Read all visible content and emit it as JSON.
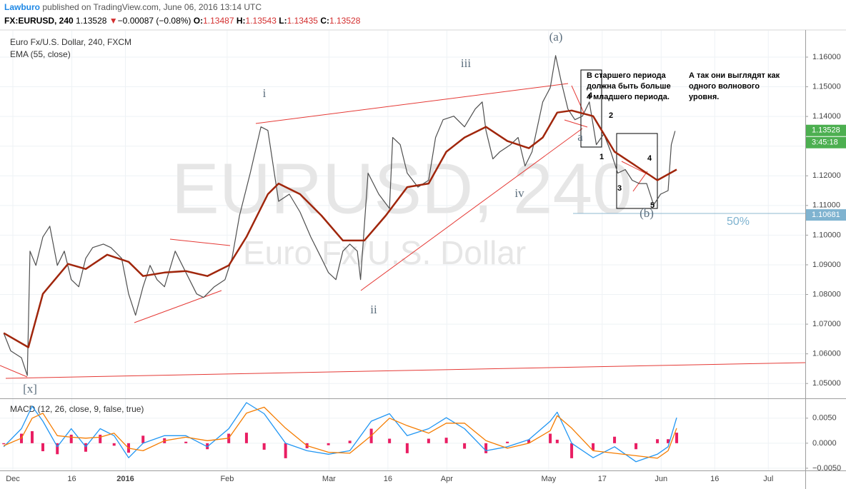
{
  "header": {
    "publisher": "Lawburo",
    "published": "published on TradingView.com, June 06, 2016 13:14 UTC",
    "symbol": "FX:EURUSD, 240",
    "last": "1.13528",
    "arrow": "▼",
    "change": "−0.00087 (−0.08%)",
    "ohlc": [
      {
        "label": "O:",
        "value": "1.13487"
      },
      {
        "label": "H:",
        "value": "1.13543"
      },
      {
        "label": "L:",
        "value": "1.13435"
      },
      {
        "label": "C:",
        "value": "1.13528"
      }
    ]
  },
  "chart_data": [
    {
      "type": "line",
      "title": "Euro Fx/U.S. Dollar, 240, FXCM",
      "watermark": "EURUSD, 240",
      "watermark_sub": "Euro Fx/U.S. Dollar",
      "grid": true,
      "xlim": [
        -2.4,
        147.9
      ],
      "ylim": [
        1.045,
        1.1689
      ],
      "xticks": [
        {
          "value": 0,
          "label": "Dec"
        },
        {
          "value": 11,
          "label": "16"
        },
        {
          "value": 21,
          "label": "2016"
        },
        {
          "value": 40,
          "label": "Feb"
        },
        {
          "value": 59,
          "label": "Mar"
        },
        {
          "value": 70,
          "label": "16"
        },
        {
          "value": 81,
          "label": "Apr"
        },
        {
          "value": 100,
          "label": "May"
        },
        {
          "value": 110,
          "label": "17"
        },
        {
          "value": 121,
          "label": "Jun"
        },
        {
          "value": 131,
          "label": "16"
        },
        {
          "value": 141,
          "label": "Jul"
        }
      ],
      "yticks": [
        {
          "value": 1.05,
          "label": "1.05000"
        },
        {
          "value": 1.06,
          "label": "1.06000"
        },
        {
          "value": 1.07,
          "label": "1.07000"
        },
        {
          "value": 1.08,
          "label": "1.08000"
        },
        {
          "value": 1.09,
          "label": "1.09000"
        },
        {
          "value": 1.1,
          "label": "1.10000"
        },
        {
          "value": 1.11,
          "label": "1.11000"
        },
        {
          "value": 1.12,
          "label": "1.12000"
        },
        {
          "value": 1.13,
          "label": "1.13000"
        },
        {
          "value": 1.14,
          "label": "1.14000"
        },
        {
          "value": 1.15,
          "label": "1.15000"
        },
        {
          "value": 1.16,
          "label": "1.16000"
        }
      ],
      "series": [
        {
          "name": "Euro Fx/U.S. Dollar, 240, FXCM",
          "color": "#4f4f4f",
          "width": 1.2,
          "x": [
            -1.7,
            -0.4,
            1.6,
            2.7,
            3.2,
            4.3,
            5.6,
            6.9,
            8.3,
            9.6,
            10.9,
            12.3,
            13.6,
            14.9,
            16.9,
            18.3,
            20.3,
            21.6,
            22.9,
            24.3,
            25.6,
            26.9,
            28.3,
            30.3,
            32.3,
            34.3,
            35.6,
            37.6,
            39.6,
            40.9,
            42.3,
            44.3,
            46.3,
            47.6,
            49.6,
            51.6,
            53.6,
            55.6,
            57.6,
            58.9,
            60.3,
            61.6,
            62.9,
            64.3,
            64.9,
            66.3,
            68.3,
            70.3,
            70.9,
            72.3,
            73.6,
            75.6,
            77.6,
            78.9,
            80.3,
            82.3,
            84.3,
            86.3,
            87.6,
            88.3,
            89.6,
            90.9,
            92.9,
            94.3,
            95.6,
            96.9,
            98.9,
            100.3,
            101.3,
            102.3,
            103.6,
            104.9,
            106.3,
            107.6,
            108.9,
            110.3,
            111.6,
            112.9,
            114.3,
            115.6,
            116.9,
            118.3,
            119.6,
            120.9,
            122.3,
            122.9,
            123.6
          ],
          "values": [
            1.067,
            1.061,
            1.0587,
            1.0527,
            1.0946,
            1.0898,
            1.0994,
            1.103,
            1.0898,
            1.0946,
            1.085,
            1.0826,
            1.0922,
            1.0958,
            1.097,
            1.0958,
            1.0922,
            1.0802,
            1.073,
            1.0826,
            1.0898,
            1.085,
            1.0826,
            1.0946,
            1.0874,
            1.0802,
            1.079,
            1.0826,
            1.085,
            1.0922,
            1.1066,
            1.1209,
            1.1365,
            1.1353,
            1.1114,
            1.1138,
            1.1078,
            1.0994,
            1.0922,
            1.0874,
            1.085,
            1.0946,
            1.097,
            1.0946,
            1.085,
            1.1209,
            1.1138,
            1.109,
            1.1329,
            1.1305,
            1.1209,
            1.1162,
            1.1185,
            1.1329,
            1.1389,
            1.1401,
            1.1365,
            1.1425,
            1.1449,
            1.1353,
            1.1257,
            1.1281,
            1.1305,
            1.1329,
            1.1233,
            1.1281,
            1.1449,
            1.1497,
            1.1605,
            1.1521,
            1.1425,
            1.1389,
            1.1401,
            1.1449,
            1.1305,
            1.1341,
            1.1281,
            1.1209,
            1.1221,
            1.1185,
            1.1174,
            1.1174,
            1.1102,
            1.1138,
            1.115,
            1.1305,
            1.1351
          ]
        },
        {
          "name": "EMA (55, close)",
          "color": "#a0260c",
          "width": 2.5,
          "x": [
            -1.7,
            2.9,
            5.6,
            10.3,
            13.6,
            17.6,
            21.6,
            24.3,
            28.3,
            32.3,
            36.3,
            40.3,
            43.6,
            47.6,
            49.6,
            53.6,
            57.6,
            61.6,
            65.6,
            69.6,
            73.6,
            77.6,
            80.9,
            84.3,
            88.3,
            92.3,
            96.3,
            98.9,
            101.6,
            104.3,
            108.3,
            112.3,
            116.3,
            120.3,
            123.9
          ],
          "values": [
            1.067,
            1.0622,
            1.0802,
            1.0903,
            1.0886,
            1.0934,
            1.091,
            1.0862,
            1.0874,
            1.0879,
            1.0862,
            1.0898,
            1.0994,
            1.1138,
            1.1174,
            1.1138,
            1.1066,
            1.0982,
            1.0982,
            1.1066,
            1.1162,
            1.1174,
            1.1281,
            1.1329,
            1.1365,
            1.1317,
            1.1293,
            1.1329,
            1.1413,
            1.142,
            1.1401,
            1.1281,
            1.1233,
            1.1185,
            1.1221
          ]
        }
      ],
      "price_labels": [
        {
          "value": 1.13528,
          "label": "1.13528",
          "color": "#4caf50"
        },
        {
          "value": 1.10681,
          "label": "1.10681",
          "color": "#7fb3d0"
        }
      ],
      "countdown": "3:45:18",
      "annotations": {
        "a_big": "(a)",
        "iii": "iii",
        "i": "i",
        "ii": "ii",
        "iv": "iv",
        "a": "a",
        "x": "[x]",
        "b": "(b)",
        "n1": "1",
        "n2": "2",
        "n3": "3",
        "n4": "4",
        "n5": "5",
        "n4s": "4",
        "pct": "50%",
        "note1": [
          "В старшего периода",
          "должна быть больше",
          "4 младшего периода."
        ],
        "note2": [
          "А так они выглядят как",
          "одного волнового",
          "уровня."
        ]
      }
    },
    {
      "type": "line",
      "title": "MACD (12, 26, close, 9, false, true)",
      "xlim": [
        -2.4,
        147.9
      ],
      "ylim": [
        -0.00544,
        0.00882
      ],
      "yticks": [
        {
          "value": 0.005,
          "label": "0.0050"
        },
        {
          "value": 0,
          "label": "0.0000"
        },
        {
          "value": -0.005,
          "label": "−0.0050"
        }
      ],
      "series": [
        {
          "style": "histogram",
          "color": "#e91e63",
          "x": [
            -1.7,
            1.6,
            3.6,
            5.6,
            8.3,
            10.9,
            13.6,
            16.3,
            18.9,
            21.6,
            24.3,
            28.3,
            32.3,
            36.3,
            40.3,
            43.6,
            46.9,
            50.9,
            54.9,
            58.9,
            62.9,
            66.9,
            70.3,
            73.6,
            77.6,
            80.9,
            84.3,
            88.3,
            92.3,
            96.3,
            100.3,
            101.6,
            104.3,
            108.3,
            112.3,
            116.3,
            120.3,
            122.3,
            123.9
          ],
          "values": [
            -0.0002,
            0.0019,
            0.0024,
            -0.0016,
            -0.0022,
            0.0017,
            -0.0017,
            0.0017,
            -0.0005,
            -0.0019,
            0.0015,
            0.001,
            0.0003,
            -0.0012,
            0.0019,
            0.0021,
            -0.0013,
            -0.003,
            -0.001,
            -0.0004,
            0.0005,
            0.0029,
            0.0009,
            -0.002,
            0.0009,
            0.0011,
            -0.0011,
            -0.002,
            0.0003,
            0.0007,
            0.0019,
            0.0007,
            -0.003,
            -0.0014,
            0.0013,
            -0.0012,
            0.0008,
            0.0008,
            0.0021
          ]
        },
        {
          "style": "line",
          "color": "#2196f3",
          "x": [
            -1.7,
            1.6,
            3.6,
            5.6,
            8.3,
            10.9,
            13.6,
            16.3,
            18.9,
            21.6,
            24.3,
            28.3,
            32.3,
            36.3,
            40.3,
            43.6,
            46.9,
            50.9,
            54.9,
            58.9,
            62.9,
            66.9,
            70.3,
            73.6,
            77.6,
            80.9,
            84.3,
            88.3,
            92.3,
            96.3,
            100.3,
            101.6,
            104.3,
            108.3,
            112.3,
            116.3,
            120.3,
            122.3,
            123.9
          ],
          "values": [
            -0.0007,
            0.0029,
            0.0074,
            0.0044,
            -0.0007,
            0.0029,
            -0.0007,
            0.0029,
            0.0015,
            -0.0029,
            0,
            0.0015,
            0.0015,
            -0.0007,
            0.0029,
            0.0081,
            0.0059,
            0,
            -0.0015,
            -0.0022,
            -0.0015,
            0.0044,
            0.0059,
            0.0015,
            0.0029,
            0.0051,
            0.0029,
            -0.0015,
            -0.0007,
            0.0007,
            0.0044,
            0.0062,
            0,
            -0.0029,
            -0.0007,
            -0.0037,
            -0.0022,
            -0.0007,
            0.0051
          ]
        },
        {
          "style": "line",
          "color": "#f57c00",
          "x": [
            -1.7,
            1.6,
            3.6,
            5.6,
            8.3,
            10.9,
            13.6,
            16.3,
            18.9,
            21.6,
            24.3,
            28.3,
            32.3,
            36.3,
            40.3,
            43.6,
            46.9,
            50.9,
            54.9,
            58.9,
            62.9,
            66.9,
            70.3,
            73.6,
            77.6,
            80.9,
            84.3,
            88.3,
            92.3,
            96.3,
            100.3,
            101.6,
            104.3,
            108.3,
            112.3,
            116.3,
            120.3,
            122.3,
            123.9
          ],
          "values": [
            -0.0005,
            0.001,
            0.005,
            0.006,
            0.0015,
            0.0012,
            0.001,
            0.0012,
            0.002,
            -0.001,
            -0.0015,
            0.0005,
            0.0012,
            0.0005,
            0.001,
            0.006,
            0.0072,
            0.003,
            -0.0005,
            -0.0018,
            -0.002,
            0.0015,
            0.005,
            0.0035,
            0.002,
            0.004,
            0.004,
            0.0005,
            -0.001,
            0,
            0.0025,
            0.0055,
            0.003,
            -0.0015,
            -0.002,
            -0.0025,
            -0.003,
            -0.0015,
            0.003
          ]
        }
      ]
    }
  ]
}
